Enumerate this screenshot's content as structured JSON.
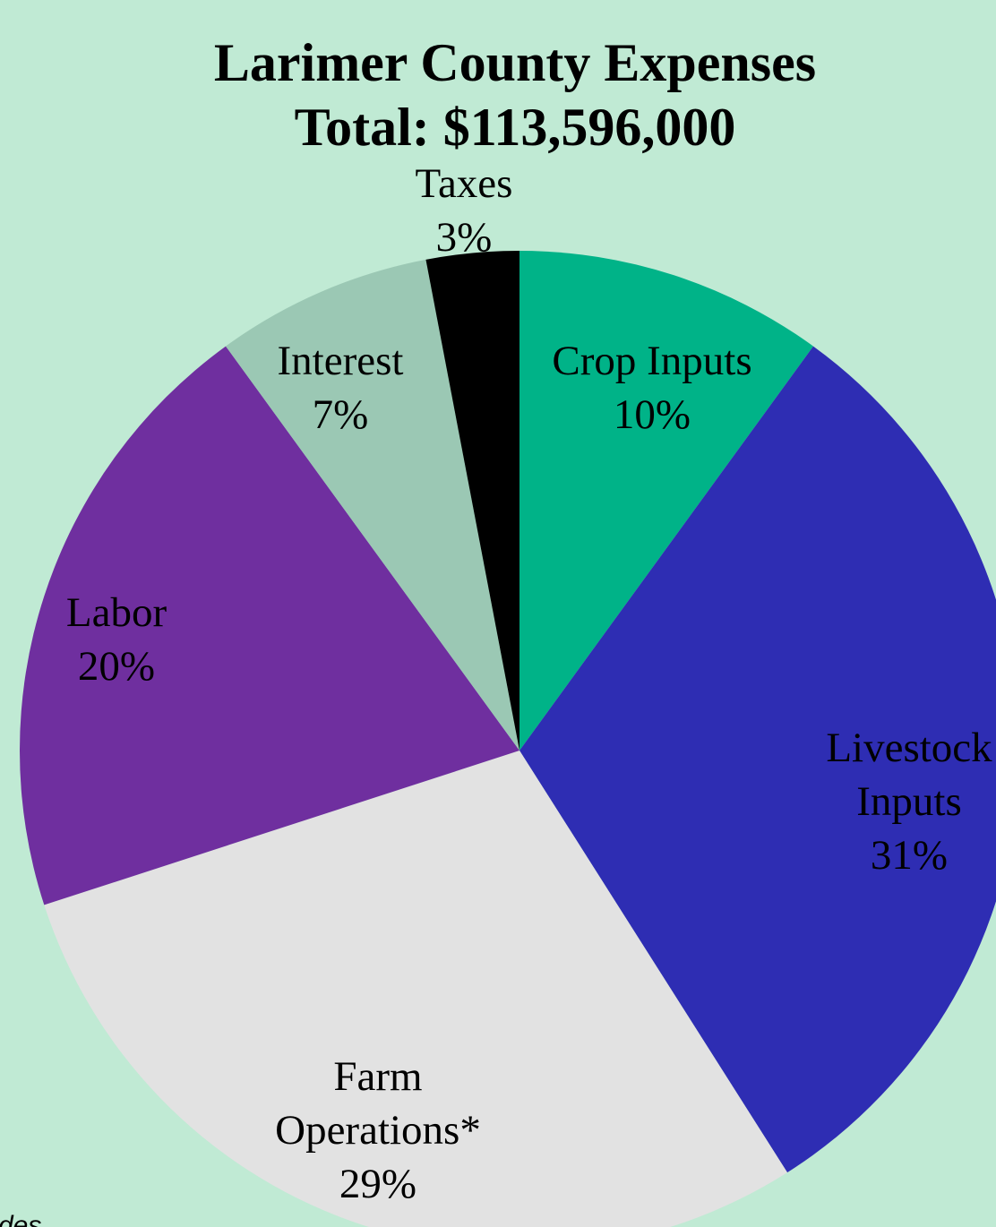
{
  "chart_data": {
    "type": "pie",
    "title": "Larimer County Expenses",
    "subtitle": "Total: $113,596,000",
    "categories": [
      "Crop Inputs",
      "Livestock\nInputs",
      "Farm\nOperations*",
      "Labor",
      "Interest",
      "Taxes"
    ],
    "values": [
      10,
      31,
      29,
      20,
      7,
      3
    ],
    "value_labels": [
      "10%",
      "31%",
      "29%",
      "20%",
      "7%",
      "3%"
    ],
    "colors": [
      "#00b388",
      "#2e2db3",
      "#e2e2e2",
      "#6f2f9f",
      "#9bc8b4",
      "#000000"
    ],
    "footnote": "des"
  }
}
